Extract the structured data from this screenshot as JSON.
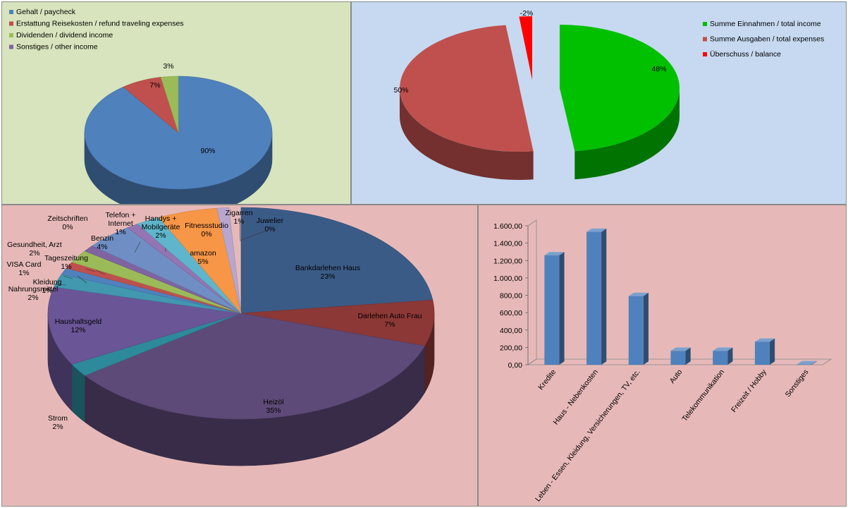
{
  "chart_data": [
    {
      "id": "income",
      "type": "pie",
      "style": "3d",
      "legend_position": "top-left",
      "series": [
        {
          "name": "Gehalt / paycheck",
          "percent": 90,
          "label": "90%",
          "color": "#4f81bd"
        },
        {
          "name": "Erstattung Reisekosten / refund traveling expenses",
          "percent": 7,
          "label": "7%",
          "color": "#c0504d"
        },
        {
          "name": "Dividenden / dividend income",
          "percent": 3,
          "label": "3%",
          "color": "#9bbb59"
        },
        {
          "name": "Sonstiges / other income",
          "percent": 0,
          "label": "",
          "color": "#8064a2"
        }
      ]
    },
    {
      "id": "balance",
      "type": "pie",
      "style": "3d-exploded",
      "legend_position": "top-right",
      "series": [
        {
          "name": "Summe Einnahmen / total income",
          "percent": 48,
          "label": "48%",
          "color": "#00c000"
        },
        {
          "name": "Summe Ausgaben / total expenses",
          "percent": 50,
          "label": "50%",
          "color": "#c0504d"
        },
        {
          "name": "Überschuss / balance",
          "percent": -2,
          "label": "-2%",
          "color": "#ff0000"
        }
      ]
    },
    {
      "id": "expenses",
      "type": "pie",
      "style": "3d",
      "legend_position": "none",
      "slices": [
        {
          "name": "Bankdarlehen Haus",
          "percent": 23,
          "label": "23%",
          "color": "#3b5b87"
        },
        {
          "name": "Darlehen Auto Frau",
          "percent": 7,
          "label": "7%",
          "color": "#8c3836"
        },
        {
          "name": "Heizöl",
          "percent": 35,
          "label": "35%",
          "color": "#5d4a78"
        },
        {
          "name": "Strom",
          "percent": 2,
          "label": "2%",
          "color": "#2d8a9a"
        },
        {
          "name": "Haushaltsgeld",
          "percent": 12,
          "label": "12%",
          "color": "#6a5597"
        },
        {
          "name": "Nahrungsmittel",
          "percent": 2,
          "label": "2%",
          "color": "#4198af"
        },
        {
          "name": "Kleidung",
          "percent": 1,
          "label": "1%",
          "color": "#4f81bd"
        },
        {
          "name": "VISA Card",
          "percent": 1,
          "label": "1%",
          "color": "#c0504d"
        },
        {
          "name": "Gesundheit, Arzt",
          "percent": 2,
          "label": "2%",
          "color": "#9bbb59"
        },
        {
          "name": "Tageszeitung",
          "percent": 1,
          "label": "1%",
          "color": "#8064a2"
        },
        {
          "name": "Zeitschriften",
          "percent": 0,
          "label": "0%",
          "color": "#4bacc6"
        },
        {
          "name": "Benzin",
          "percent": 4,
          "label": "4%",
          "color": "#6f8fc4"
        },
        {
          "name": "Telefon + Internet",
          "percent": 1,
          "label": "1%",
          "color": "#9474b3"
        },
        {
          "name": "Handys + Mobilgeräte",
          "percent": 2,
          "label": "2%",
          "color": "#5fb6cc"
        },
        {
          "name": "Fitnessstudio",
          "percent": 0,
          "label": "0%",
          "color": "#f2c080"
        },
        {
          "name": "amazon",
          "percent": 5,
          "label": "5%",
          "color": "#f79646"
        },
        {
          "name": "Zigarren",
          "percent": 1,
          "label": "1%",
          "color": "#b8a6cf"
        },
        {
          "name": "Juwelier",
          "percent": 0,
          "label": "0%",
          "color": "#7fb5d0"
        }
      ]
    },
    {
      "id": "monthly",
      "type": "bar",
      "style": "3d",
      "color": "#4f81bd",
      "categories": [
        "Kredite",
        "Haus - Nebenkosten",
        "Leben - Essen, Kleidung, Versicherungen, TV, etc.",
        "Auto",
        "Telekommunikation",
        "Freizeit / Hobby",
        "Sonstiges"
      ],
      "values": [
        1260,
        1530,
        790,
        160,
        160,
        265,
        5
      ],
      "ylim": [
        0,
        1600
      ],
      "yticks": [
        0,
        200,
        400,
        600,
        800,
        1000,
        1200,
        1400,
        1600
      ],
      "ytick_labels": [
        "0,00",
        "200,00",
        "400,00",
        "600,00",
        "800,00",
        "1.000,00",
        "1.200,00",
        "1.400,00",
        "1.600,00"
      ],
      "grid": false
    }
  ]
}
